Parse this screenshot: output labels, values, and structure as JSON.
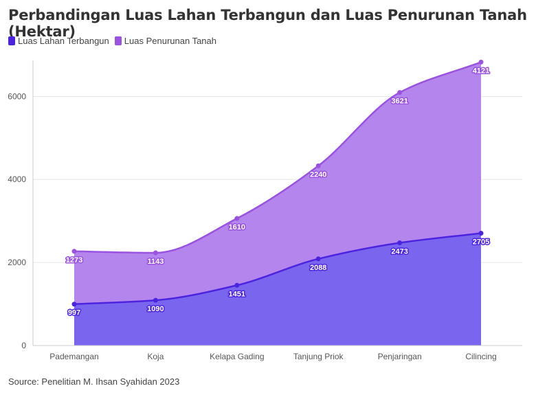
{
  "title": "Perbandingan Luas Lahan Terbangun dan Luas Penurunan Tanah (Hektar)",
  "source": "Source: Penelitian M. Ihsan Syahidan 2023",
  "colors": {
    "series1_line": "#4c24e0",
    "series1_fill": "#7a66ee",
    "series2_line": "#9a52e0",
    "series2_fill": "#b485ec"
  },
  "chart_data": {
    "type": "area",
    "stacked": true,
    "categories": [
      "Pademangan",
      "Koja",
      "Kelapa Gading",
      "Tanjung Priok",
      "Penjaringan",
      "Cilincing"
    ],
    "series": [
      {
        "name": "Luas Lahan Terbangun",
        "values": [
          997,
          1090,
          1451,
          2088,
          2473,
          2705
        ]
      },
      {
        "name": "Luas Penurunan Tanah",
        "values": [
          1273,
          1143,
          1610,
          2240,
          3621,
          4121
        ]
      }
    ],
    "yticks": [
      "0",
      "2000",
      "4000",
      "6000"
    ],
    "ylim": [
      0,
      6800
    ],
    "grid": true,
    "legend": "top-left"
  }
}
